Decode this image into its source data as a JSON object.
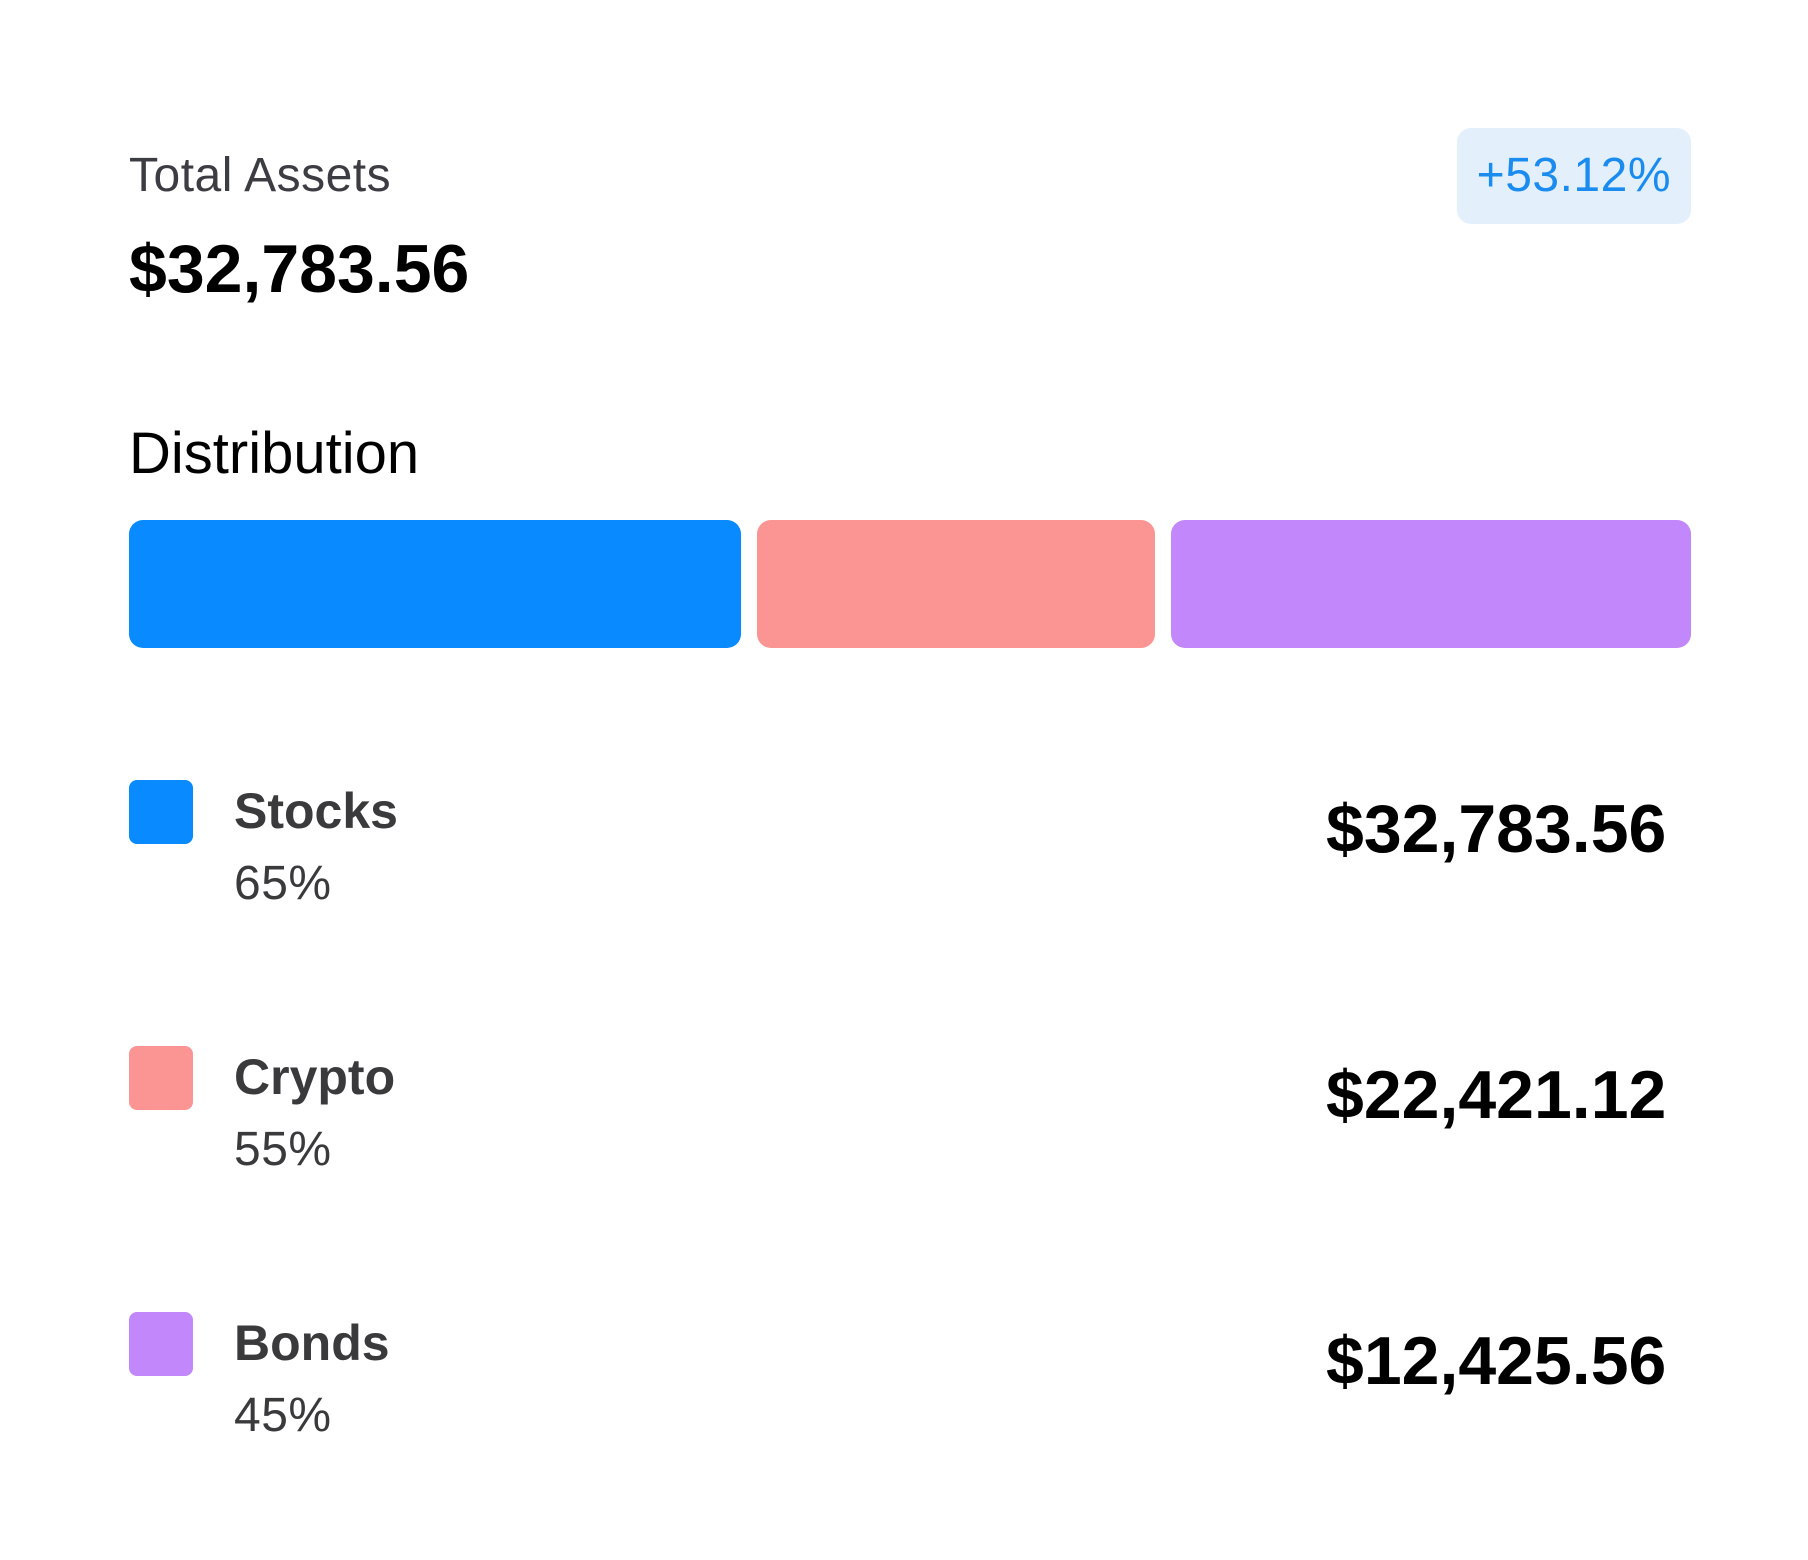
{
  "summary": {
    "label": "Total Assets",
    "value": "$32,783.56",
    "change": "+53.12%"
  },
  "distribution": {
    "title": "Distribution",
    "segments": [
      {
        "name": "Stocks",
        "share": 0.4,
        "color": "#0a8aff"
      },
      {
        "name": "Crypto",
        "share": 0.26,
        "color": "#fb9593"
      },
      {
        "name": "Bonds",
        "share": 0.34,
        "color": "#c187fb"
      }
    ]
  },
  "assets": [
    {
      "name": "Stocks",
      "percent": "65%",
      "value": "$32,783.56",
      "color": "#0a8aff"
    },
    {
      "name": "Crypto",
      "percent": "55%",
      "value": "$22,421.12",
      "color": "#fb9593"
    },
    {
      "name": "Bonds",
      "percent": "45%",
      "value": "$12,425.56",
      "color": "#c187fb"
    }
  ],
  "colors": {
    "badge_bg": "#e3f0fc",
    "badge_text": "#1a8cf0"
  }
}
